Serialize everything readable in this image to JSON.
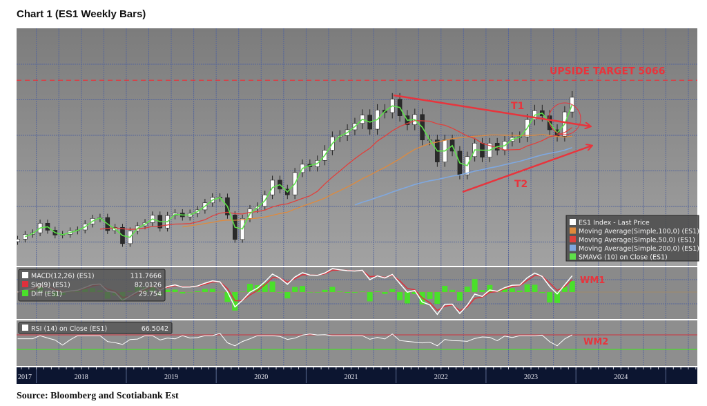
{
  "title": "Chart 1 (ES1 Weekly Bars)",
  "source": "Source: Bloomberg and Scotiabank Est",
  "colors": {
    "price_up": "#ffffff",
    "price_down": "#2a2a2a",
    "ma100": "#e08a3c",
    "ma50": "#e0403c",
    "ma200": "#7fa8e0",
    "sma10": "#5ee04a",
    "annotation": "#e8343c",
    "macd": "#ffffff",
    "signal": "#e0303c",
    "diff": "#4ae02a",
    "rsi": "#ffffff"
  },
  "chart_data": [
    {
      "type": "bar",
      "subtype": "ohlc-candles",
      "x_tick_labels": [
        "2017",
        "2018",
        "2019",
        "2020",
        "2021",
        "2022",
        "2023",
        "2024"
      ],
      "xlim": [
        2017.78,
        2025.35
      ],
      "ylim": [
        2157,
        5881
      ],
      "grid": true,
      "x_dates": [
        "2017-10",
        "2017-11",
        "2017-12",
        "2018-01",
        "2018-02",
        "2018-03",
        "2018-04",
        "2018-05",
        "2018-06",
        "2018-07",
        "2018-08",
        "2018-09",
        "2018-10",
        "2018-11",
        "2018-12",
        "2019-01",
        "2019-02",
        "2019-03",
        "2019-04",
        "2019-05",
        "2019-06",
        "2019-07",
        "2019-08",
        "2019-09",
        "2019-10",
        "2019-11",
        "2019-12",
        "2020-01",
        "2020-02",
        "2020-03",
        "2020-04",
        "2020-05",
        "2020-06",
        "2020-07",
        "2020-08",
        "2020-09",
        "2020-10",
        "2020-11",
        "2020-12",
        "2021-01",
        "2021-02",
        "2021-03",
        "2021-04",
        "2021-05",
        "2021-06",
        "2021-07",
        "2021-08",
        "2021-09",
        "2021-10",
        "2021-11",
        "2021-12",
        "2022-01",
        "2022-02",
        "2022-03",
        "2022-04",
        "2022-05",
        "2022-06",
        "2022-07",
        "2022-08",
        "2022-09",
        "2022-10",
        "2022-11",
        "2022-12",
        "2023-01",
        "2023-02",
        "2023-03",
        "2023-04",
        "2023-05",
        "2023-06",
        "2023-07",
        "2023-08",
        "2023-09",
        "2023-10",
        "2023-11",
        "2023-12"
      ],
      "close": [
        2575,
        2650,
        2675,
        2825,
        2715,
        2640,
        2650,
        2705,
        2720,
        2815,
        2900,
        2915,
        2710,
        2760,
        2505,
        2705,
        2785,
        2835,
        2950,
        2750,
        2945,
        2985,
        2925,
        2980,
        3035,
        3145,
        3230,
        3225,
        2955,
        2570,
        2900,
        3050,
        3090,
        3270,
        3500,
        3360,
        3270,
        3620,
        3750,
        3710,
        3810,
        3970,
        4180,
        4200,
        4290,
        4390,
        4520,
        4300,
        4600,
        4560,
        4770,
        4510,
        4370,
        4530,
        4130,
        4130,
        3785,
        4130,
        3955,
        3585,
        3870,
        4080,
        3860,
        4080,
        3970,
        4110,
        4170,
        4180,
        4450,
        4590,
        4510,
        4290,
        4190,
        4570,
        4800
      ],
      "legend": [
        {
          "label": "ES1 Index - Last Price",
          "color": "#ffffff"
        },
        {
          "label": "Moving Average(Simple,100,0) (ES1)",
          "color": "#e08a3c"
        },
        {
          "label": "Moving Average(Simple,50,0) (ES1)",
          "color": "#e0403c"
        },
        {
          "label": "Moving Average(Simple,200,0) (ES1)",
          "color": "#7fa8e0"
        },
        {
          "label": "SMAVG (10)  on Close (ES1)",
          "color": "#5ee04a"
        }
      ],
      "legend_position": "bottom-right",
      "annotations": {
        "target_label": "UPSIDE TARGET 5066",
        "target_value": 5066,
        "t1": "T1",
        "t2": "T2"
      }
    },
    {
      "type": "line",
      "panel": "MACD",
      "legend": [
        {
          "label": "MACD(12,26) (ES1)",
          "value": "111.7666",
          "color": "#ffffff"
        },
        {
          "label": "Sig(9) (ES1)",
          "value": "82.0126",
          "color": "#e0303c"
        },
        {
          "label": "Diff (ES1)",
          "value": "29.754",
          "color": "#4ae02a"
        }
      ],
      "legend_position": "top-left",
      "annotation": "WM1"
    },
    {
      "type": "line",
      "panel": "RSI",
      "legend": [
        {
          "label": "RSI (14)  on Close (ES1)",
          "value": "66.5042",
          "color": "#ffffff"
        }
      ],
      "levels": [
        70,
        30
      ],
      "ylim": [
        0,
        100
      ],
      "annotation": "WM2"
    }
  ]
}
